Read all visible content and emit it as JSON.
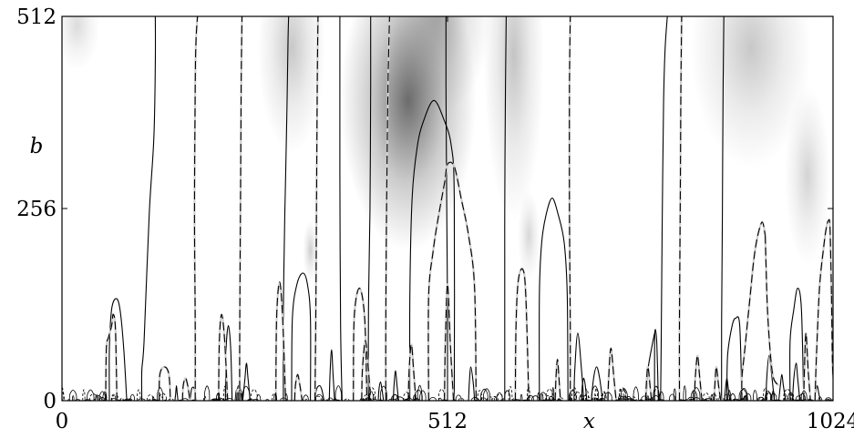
{
  "chart_data": {
    "type": "heatmap",
    "xlabel": "x",
    "ylabel": "b",
    "xlim": [
      0,
      1024
    ],
    "ylim": [
      0,
      512
    ],
    "xticks": [
      0,
      512,
      1024
    ],
    "yticks": [
      0,
      256,
      512
    ],
    "xtick_labels": [
      "0",
      "512",
      "1024"
    ],
    "ytick_labels": [
      "0",
      "256",
      "512"
    ],
    "colormap": "white-to-gray (higher magnitude darker)",
    "colors": {
      "background": "#ffffff",
      "shade": "#3a3a3a",
      "solid_line": "#000000",
      "dashed_line": "#000000"
    },
    "shading_blobs": [
      {
        "x": 460,
        "b": 400,
        "sx": 90,
        "sb": 200,
        "intensity": 0.75
      },
      {
        "x": 500,
        "b": 512,
        "sx": 70,
        "sb": 130,
        "intensity": 0.35
      },
      {
        "x": 600,
        "b": 460,
        "sx": 40,
        "sb": 220,
        "intensity": 0.3
      },
      {
        "x": 305,
        "b": 470,
        "sx": 45,
        "sb": 140,
        "intensity": 0.28
      },
      {
        "x": 330,
        "b": 200,
        "sx": 10,
        "sb": 40,
        "intensity": 0.25
      },
      {
        "x": 915,
        "b": 470,
        "sx": 80,
        "sb": 160,
        "intensity": 0.28
      },
      {
        "x": 990,
        "b": 300,
        "sx": 30,
        "sb": 120,
        "intensity": 0.22
      },
      {
        "x": 20,
        "b": 500,
        "sx": 30,
        "sb": 60,
        "intensity": 0.18
      },
      {
        "x": 620,
        "b": 220,
        "sx": 15,
        "sb": 60,
        "intensity": 0.2
      }
    ],
    "solid_contours": [
      {
        "x": [
          63,
          63,
          66,
          72,
          77,
          82,
          86
        ],
        "b": [
          0,
          70,
          122,
          136,
          122,
          70,
          0
        ]
      },
      {
        "x": [
          170,
          172,
          174,
          176,
          178
        ],
        "b": [
          0,
          15,
          18,
          15,
          0
        ]
      },
      {
        "x": [
          106,
          106,
          109,
          116,
          122,
          124,
          124
        ],
        "b": [
          0,
          40,
          80,
          250,
          350,
          450,
          512
        ]
      },
      {
        "x": [
          217,
          218,
          221,
          224,
          226
        ],
        "b": [
          0,
          70,
          100,
          70,
          0
        ]
      },
      {
        "x": [
          240,
          243,
          245,
          247,
          250
        ],
        "b": [
          0,
          30,
          50,
          30,
          0
        ]
      },
      {
        "x": [
          294,
          294,
          296,
          297,
          299,
          300,
          301
        ],
        "b": [
          0,
          120,
          250,
          300,
          400,
          470,
          512
        ]
      },
      {
        "x": [
          305,
          306,
          312,
          320,
          326,
          330,
          330
        ],
        "b": [
          0,
          110,
          155,
          170,
          155,
          110,
          0
        ]
      },
      {
        "x": [
          336,
          338,
          342,
          345,
          348
        ],
        "b": [
          0,
          15,
          20,
          15,
          0
        ]
      },
      {
        "x": [
          355,
          356,
          358,
          360,
          362
        ],
        "b": [
          0,
          35,
          68,
          35,
          0
        ]
      },
      {
        "x": [
          372,
          370,
          369,
          369,
          369
        ],
        "b": [
          0,
          100,
          300,
          420,
          512
        ]
      },
      {
        "x": [
          407,
          407,
          409,
          410,
          410
        ],
        "b": [
          0,
          120,
          250,
          420,
          512
        ]
      },
      {
        "x": [
          462,
          462,
          465,
          472,
          481,
          494,
          507,
          517,
          521,
          521
        ],
        "b": [
          0,
          140,
          270,
          340,
          375,
          400,
          375,
          340,
          270,
          0
        ]
      },
      {
        "x": [
          512,
          512,
          511,
          510,
          510
        ],
        "b": [
          0,
          120,
          250,
          420,
          512
        ]
      },
      {
        "x": [
          634,
          634,
          637,
          643,
          651,
          659,
          667,
          671,
          672
        ],
        "b": [
          0,
          140,
          210,
          248,
          270,
          248,
          210,
          140,
          0
        ]
      },
      {
        "x": [
          588,
          588,
          588,
          589,
          590
        ],
        "b": [
          0,
          100,
          250,
          420,
          512
        ]
      },
      {
        "x": [
          680,
          681,
          685,
          690,
          693
        ],
        "b": [
          0,
          40,
          90,
          40,
          0
        ]
      },
      {
        "x": [
          703,
          706,
          710,
          714,
          718
        ],
        "b": [
          0,
          30,
          45,
          30,
          0
        ]
      },
      {
        "x": [
          787,
          787,
          788,
          790,
          792
        ],
        "b": [
          0,
          75,
          95,
          75,
          0
        ]
      },
      {
        "x": [
          795,
          796,
          797,
          799,
          801,
          804
        ],
        "b": [
          0,
          100,
          230,
          400,
          470,
          512
        ]
      },
      {
        "x": [
          776,
          778,
          784,
          787
        ],
        "b": [
          0,
          40,
          75,
          90
        ]
      },
      {
        "x": [
          883,
          884,
          890,
          895,
          900,
          903
        ],
        "b": [
          0,
          60,
          100,
          110,
          100,
          0
        ]
      },
      {
        "x": [
          876,
          876,
          877,
          878,
          879
        ],
        "b": [
          0,
          100,
          250,
          420,
          512
        ]
      },
      {
        "x": [
          967,
          967,
          972,
          977,
          982,
          985
        ],
        "b": [
          0,
          80,
          122,
          150,
          122,
          0
        ]
      },
      {
        "x": [
          970,
          972,
          975,
          977,
          980
        ],
        "b": [
          0,
          30,
          50,
          30,
          0
        ]
      },
      {
        "x": [
          935,
          936,
          939,
          943,
          946
        ],
        "b": [
          0,
          30,
          60,
          30,
          0
        ]
      },
      {
        "x": [
          952,
          954,
          956,
          958,
          961
        ],
        "b": [
          0,
          20,
          35,
          20,
          0
        ]
      },
      {
        "x": [
          880,
          881,
          883,
          885,
          887
        ],
        "b": [
          0,
          15,
          30,
          15,
          0
        ]
      },
      {
        "x": [
          150,
          151,
          152,
          153,
          154
        ],
        "b": [
          0,
          10,
          20,
          10,
          0
        ]
      },
      {
        "x": [
          230,
          231,
          232,
          233,
          234
        ],
        "b": [
          0,
          10,
          15,
          10,
          0
        ]
      },
      {
        "x": [
          420,
          421,
          423,
          425,
          427
        ],
        "b": [
          0,
          15,
          25,
          15,
          0
        ]
      },
      {
        "x": [
          440,
          441,
          443,
          445,
          447
        ],
        "b": [
          0,
          20,
          40,
          20,
          0
        ]
      },
      {
        "x": [
          540,
          541,
          543,
          546,
          548
        ],
        "b": [
          0,
          25,
          45,
          25,
          0
        ]
      },
      {
        "x": [
          690,
          691,
          693,
          695,
          697
        ],
        "b": [
          0,
          20,
          30,
          20,
          0
        ]
      },
      {
        "x": [
          1000,
          1001,
          1003,
          1005,
          1007
        ],
        "b": [
          0,
          10,
          20,
          10,
          0
        ]
      }
    ],
    "dashed_contours": [
      {
        "x": [
          58,
          59,
          62,
          66,
          68,
          71,
          73
        ],
        "b": [
          0,
          70,
          85,
          100,
          115,
          95,
          0
        ]
      },
      {
        "x": [
          129,
          130,
          136,
          142,
          144
        ],
        "b": [
          0,
          35,
          45,
          35,
          0
        ]
      },
      {
        "x": [
          177,
          177,
          176,
          177,
          178,
          180
        ],
        "b": [
          0,
          100,
          250,
          420,
          480,
          512
        ]
      },
      {
        "x": [
          160,
          161,
          164,
          167,
          170
        ],
        "b": [
          0,
          20,
          30,
          20,
          0
        ]
      },
      {
        "x": [
          208,
          209,
          212,
          216,
          220
        ],
        "b": [
          0,
          80,
          115,
          80,
          0
        ]
      },
      {
        "x": [
          232,
          233,
          235,
          237,
          239
        ],
        "b": [
          0,
          15,
          20,
          15,
          0
        ]
      },
      {
        "x": [
          236,
          236,
          237,
          238,
          239
        ],
        "b": [
          0,
          80,
          250,
          420,
          512
        ]
      },
      {
        "x": [
          284,
          285,
          289,
          293,
          297
        ],
        "b": [
          0,
          110,
          158,
          110,
          0
        ]
      },
      {
        "x": [
          336,
          337,
          338,
          339,
          340
        ],
        "b": [
          0,
          100,
          250,
          420,
          512
        ]
      },
      {
        "x": [
          309,
          310,
          313,
          316,
          319
        ],
        "b": [
          0,
          20,
          35,
          20,
          0
        ]
      },
      {
        "x": [
          387,
          388,
          395,
          402,
          405
        ],
        "b": [
          0,
          110,
          150,
          110,
          0
        ]
      },
      {
        "x": [
          430,
          430,
          431,
          433,
          435
        ],
        "b": [
          0,
          100,
          250,
          420,
          512
        ]
      },
      {
        "x": [
          398,
          399,
          403,
          407,
          410
        ],
        "b": [
          0,
          40,
          80,
          40,
          0
        ]
      },
      {
        "x": [
          460,
          461,
          464,
          467,
          470
        ],
        "b": [
          0,
          40,
          75,
          40,
          0
        ]
      },
      {
        "x": [
          487,
          487,
          493,
          499,
          508,
          512,
          521,
          530,
          540,
          548,
          550
        ],
        "b": [
          0,
          140,
          200,
          240,
          290,
          315,
          312,
          270,
          220,
          150,
          0
        ]
      },
      {
        "x": [
          508,
          509,
          512,
          516,
          520
        ],
        "b": [
          0,
          70,
          155,
          70,
          0
        ]
      },
      {
        "x": [
          602,
          603,
          606,
          612,
          616,
          620
        ],
        "b": [
          0,
          100,
          160,
          175,
          140,
          0
        ]
      },
      {
        "x": [
          675,
          675,
          674,
          674,
          675
        ],
        "b": [
          0,
          100,
          250,
          420,
          512
        ]
      },
      {
        "x": [
          655,
          656,
          658,
          660,
          662
        ],
        "b": [
          0,
          30,
          55,
          30,
          0
        ]
      },
      {
        "x": [
          725,
          726,
          729,
          733,
          736
        ],
        "b": [
          0,
          30,
          70,
          30,
          0
        ]
      },
      {
        "x": [
          775,
          776,
          778,
          781,
          783
        ],
        "b": [
          0,
          20,
          45,
          20,
          0
        ]
      },
      {
        "x": [
          820,
          820,
          821,
          822,
          823
        ],
        "b": [
          0,
          100,
          250,
          420,
          512
        ]
      },
      {
        "x": [
          840,
          841,
          844,
          847,
          850
        ],
        "b": [
          0,
          30,
          60,
          30,
          0
        ]
      },
      {
        "x": [
          866,
          867,
          869,
          872,
          875
        ],
        "b": [
          0,
          20,
          45,
          20,
          0
        ]
      },
      {
        "x": [
          903,
          903,
          906,
          911,
          915,
          919,
          924,
          930,
          934
        ],
        "b": [
          0,
          30,
          60,
          110,
          150,
          190,
          220,
          238,
          220
        ]
      },
      {
        "x": [
          934,
          935,
          937,
          941,
          945,
          952
        ],
        "b": [
          220,
          180,
          120,
          60,
          30,
          20
        ]
      },
      {
        "x": [
          985,
          986,
          988,
          991,
          994
        ],
        "b": [
          0,
          40,
          90,
          40,
          0
        ]
      },
      {
        "x": [
          1000,
          1002,
          1006,
          1011,
          1015,
          1018,
          1020,
          1022
        ],
        "b": [
          0,
          60,
          150,
          200,
          230,
          240,
          230,
          140
        ]
      },
      {
        "x": [
          1022,
          1023,
          1024
        ],
        "b": [
          140,
          60,
          30
        ]
      }
    ]
  }
}
